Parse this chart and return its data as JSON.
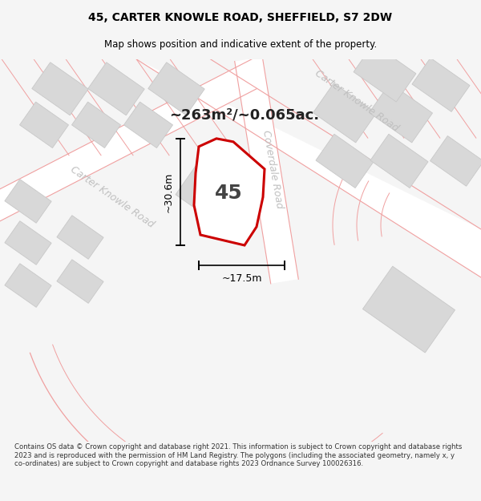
{
  "title_line1": "45, CARTER KNOWLE ROAD, SHEFFIELD, S7 2DW",
  "title_line2": "Map shows position and indicative extent of the property.",
  "area_label": "~263m²/~0.065ac.",
  "number_label": "45",
  "dim_height": "~30.6m",
  "dim_width": "~17.5m",
  "road_label_lower": "Carter Knowle Road",
  "road_label_upper": "Carter Knowle Road",
  "road_label_right": "Coverdale Road",
  "footer_text": "Contains OS data © Crown copyright and database right 2021. This information is subject to Crown copyright and database rights 2023 and is reproduced with the permission of HM Land Registry. The polygons (including the associated geometry, namely x, y co-ordinates) are subject to Crown copyright and database rights 2023 Ordnance Survey 100026316.",
  "bg_color": "#f5f5f5",
  "map_bg": "#eeeeee",
  "road_fill": "#ffffff",
  "plot_outline_color": "#cc0000",
  "plot_fill_color": "#ffffff",
  "building_fill": "#d8d8d8",
  "building_stroke": "#c8c8c8",
  "road_line_color": "#f0a0a0",
  "road_label_color": "#c0c0c0",
  "dim_line_color": "#000000",
  "text_color": "#000000",
  "footer_color": "#333333"
}
